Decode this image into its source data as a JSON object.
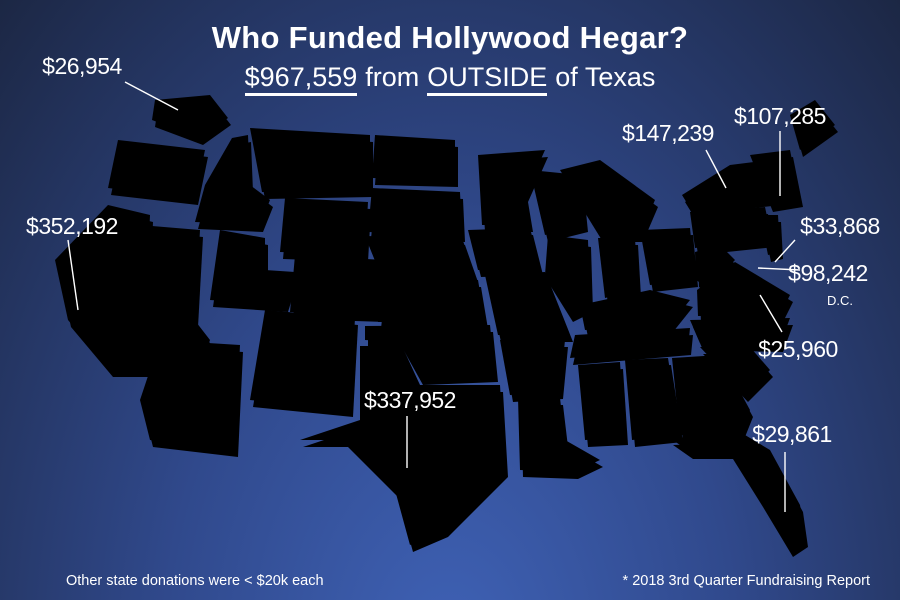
{
  "header": {
    "title": "Who Funded Hollywood Hegar?",
    "subtitle": {
      "amount": "$967,559",
      "middle": "from",
      "emphasis": "OUTSIDE",
      "end": "of Texas"
    }
  },
  "labels": [
    {
      "amount": "$26,954"
    },
    {
      "amount": "$352,192"
    },
    {
      "amount": "$337,952"
    },
    {
      "amount": "$147,239"
    },
    {
      "amount": "$107,285"
    },
    {
      "amount": "$33,868"
    },
    {
      "amount": "$98,242",
      "note": "D.C."
    },
    {
      "amount": "$25,960"
    },
    {
      "amount": "$29,861"
    }
  ],
  "footer": {
    "left": "Other state donations were < $20k each",
    "right": "* 2018 3rd Quarter Fundraising Report"
  }
}
